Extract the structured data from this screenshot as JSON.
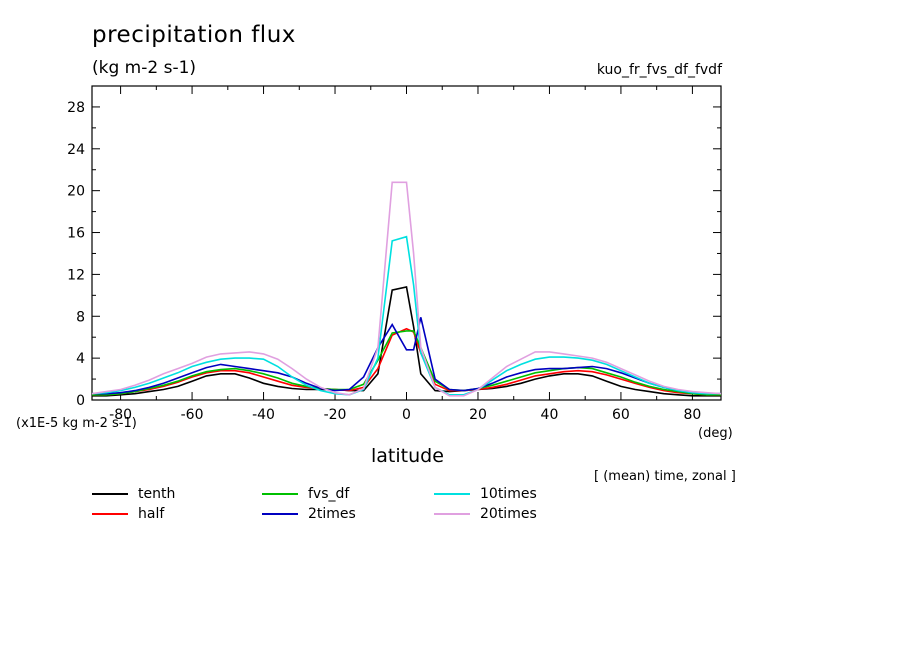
{
  "header": {
    "title": "precipitation flux",
    "units": "(kg m-2 s-1)",
    "run_name": "kuo_fr_fvs_df_fvdf"
  },
  "axes": {
    "scale_note": "(x1E-5 kg m-2 s-1)",
    "x_unit": "(deg)",
    "x_label": "latitude",
    "mean_info": "[ (mean) time, zonal ]"
  },
  "chart_data": {
    "type": "line",
    "title": "precipitation flux",
    "ylabel": "(kg m-2 s-1)",
    "xlabel": "latitude",
    "xlim": [
      -88,
      88
    ],
    "ylim": [
      0,
      30
    ],
    "x_ticks": [
      -80,
      -60,
      -40,
      -20,
      0,
      20,
      40,
      60,
      80
    ],
    "x_tick_labels": [
      "-80",
      "-60",
      "-40",
      "-20",
      "0",
      "20",
      "40",
      "60",
      "80"
    ],
    "y_ticks": [
      0,
      4,
      8,
      12,
      16,
      20,
      24,
      28
    ],
    "y_tick_labels": [
      "0",
      "4",
      "8",
      "12",
      "16",
      "20",
      "24",
      "28"
    ],
    "grid": false,
    "legend_position": "bottom",
    "x": [
      -88,
      -84,
      -80,
      -76,
      -72,
      -68,
      -64,
      -60,
      -56,
      -52,
      -48,
      -44,
      -40,
      -36,
      -32,
      -28,
      -24,
      -20,
      -16,
      -12,
      -8,
      -4,
      0,
      2,
      4,
      8,
      12,
      16,
      20,
      24,
      28,
      32,
      36,
      40,
      44,
      48,
      52,
      56,
      60,
      64,
      68,
      72,
      76,
      80,
      84,
      88
    ],
    "series": [
      {
        "name": "tenth",
        "color": "#000000",
        "values": [
          0.4,
          0.4,
          0.5,
          0.6,
          0.8,
          1.0,
          1.3,
          1.8,
          2.3,
          2.5,
          2.5,
          2.1,
          1.6,
          1.3,
          1.1,
          1.0,
          1.0,
          1.0,
          0.9,
          0.9,
          2.5,
          10.5,
          10.8,
          7.0,
          2.5,
          0.9,
          0.8,
          0.9,
          1.0,
          1.1,
          1.3,
          1.6,
          2.0,
          2.3,
          2.5,
          2.5,
          2.3,
          1.8,
          1.3,
          1.0,
          0.8,
          0.6,
          0.5,
          0.4,
          0.4,
          0.4
        ]
      },
      {
        "name": "half",
        "color": "#ff0000",
        "values": [
          0.5,
          0.5,
          0.6,
          0.8,
          1.0,
          1.3,
          1.7,
          2.2,
          2.6,
          2.8,
          2.8,
          2.6,
          2.2,
          1.8,
          1.4,
          1.2,
          1.1,
          1.0,
          0.9,
          1.2,
          3.0,
          6.2,
          6.8,
          6.5,
          4.5,
          1.5,
          0.9,
          0.9,
          1.0,
          1.2,
          1.5,
          1.9,
          2.3,
          2.5,
          2.7,
          2.8,
          2.7,
          2.4,
          2.0,
          1.6,
          1.2,
          0.9,
          0.7,
          0.6,
          0.5,
          0.5
        ]
      },
      {
        "name": "fvs_df",
        "color": "#00c000",
        "values": [
          0.5,
          0.5,
          0.6,
          0.8,
          1.1,
          1.4,
          1.8,
          2.3,
          2.7,
          2.9,
          3.0,
          2.8,
          2.5,
          2.1,
          1.6,
          1.3,
          1.1,
          1.0,
          1.0,
          1.5,
          3.8,
          6.4,
          6.6,
          6.6,
          5.0,
          1.8,
          1.0,
          0.9,
          1.1,
          1.4,
          1.8,
          2.2,
          2.6,
          2.8,
          3.0,
          3.1,
          3.0,
          2.6,
          2.2,
          1.7,
          1.3,
          1.0,
          0.8,
          0.6,
          0.5,
          0.5
        ]
      },
      {
        "name": "2times",
        "color": "#0000c0",
        "values": [
          0.6,
          0.6,
          0.7,
          0.9,
          1.2,
          1.6,
          2.1,
          2.6,
          3.1,
          3.4,
          3.2,
          3.0,
          2.8,
          2.6,
          2.2,
          1.6,
          1.1,
          0.9,
          1.0,
          2.2,
          5.0,
          7.2,
          4.8,
          4.8,
          7.9,
          2.0,
          1.0,
          0.9,
          1.1,
          1.6,
          2.2,
          2.6,
          2.9,
          3.0,
          3.0,
          3.1,
          3.2,
          3.0,
          2.6,
          2.1,
          1.6,
          1.2,
          0.9,
          0.7,
          0.6,
          0.6
        ]
      },
      {
        "name": "10times",
        "color": "#00e0e0",
        "values": [
          0.6,
          0.7,
          0.9,
          1.2,
          1.6,
          2.1,
          2.6,
          3.2,
          3.6,
          3.9,
          4.0,
          4.0,
          3.9,
          3.2,
          2.2,
          1.4,
          0.9,
          0.6,
          0.5,
          1.0,
          4.0,
          15.2,
          15.6,
          11.0,
          4.5,
          1.2,
          0.5,
          0.5,
          1.0,
          1.9,
          2.8,
          3.4,
          3.9,
          4.1,
          4.1,
          4.0,
          3.8,
          3.4,
          2.8,
          2.2,
          1.6,
          1.2,
          0.9,
          0.7,
          0.6,
          0.6
        ]
      },
      {
        "name": "20times",
        "color": "#e0a0e0",
        "values": [
          0.6,
          0.8,
          1.0,
          1.4,
          1.9,
          2.5,
          3.0,
          3.5,
          4.1,
          4.4,
          4.5,
          4.6,
          4.4,
          3.9,
          3.0,
          2.0,
          1.2,
          0.7,
          0.5,
          1.1,
          5.0,
          20.8,
          20.8,
          14.0,
          5.0,
          1.2,
          0.4,
          0.4,
          1.0,
          2.1,
          3.2,
          3.9,
          4.6,
          4.6,
          4.4,
          4.2,
          4.0,
          3.6,
          3.0,
          2.4,
          1.8,
          1.3,
          1.0,
          0.8,
          0.7,
          0.6
        ]
      }
    ]
  }
}
